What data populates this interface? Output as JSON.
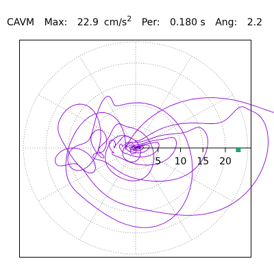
{
  "header": {
    "component": "CAVM",
    "max_label": "Max:",
    "max_value": "22.9",
    "max_unit": "cm/s",
    "max_unit_exp": "2",
    "period_label": "Per:",
    "period_value": "0.180 s",
    "angle_label": "Ang:",
    "angle_value": "2.2"
  },
  "chart_data": {
    "type": "line",
    "subtype": "polar-orbit",
    "title": "",
    "xlabel": "",
    "ylabel": "",
    "radial_ticks": [
      5,
      10,
      15,
      20
    ],
    "radial_tick_labels": [
      "5",
      "10",
      "15",
      "20"
    ],
    "rlim": [
      0,
      25
    ],
    "angular_gridlines_deg": [
      0,
      30,
      60,
      90,
      120,
      150,
      180,
      210,
      240,
      270,
      300,
      330
    ],
    "grid": true,
    "grid_style": "dotted",
    "series": [
      {
        "color": "#8a00d4",
        "components": [
          {
            "amp_x": 22.2,
            "amp_y": 4.6,
            "freq": 1,
            "phase": 0.0,
            "rot_deg": 0,
            "decay": 0.18
          },
          {
            "amp_x": 17.5,
            "amp_y": 8.0,
            "freq": 2,
            "phase": 0.8,
            "rot_deg": 14,
            "decay": 0.22
          },
          {
            "amp_x": 9.8,
            "amp_y": 12.4,
            "freq": 3,
            "phase": 1.6,
            "rot_deg": -35,
            "decay": 0.27
          },
          {
            "amp_x": 7.2,
            "amp_y": 9.6,
            "freq": 5,
            "phase": 2.3,
            "rot_deg": 52,
            "decay": 0.33
          },
          {
            "amp_x": 4.5,
            "amp_y": 5.9,
            "freq": 8,
            "phase": 0.4,
            "rot_deg": -68,
            "decay": 0.42
          },
          {
            "amp_x": 2.8,
            "amp_y": 3.4,
            "freq": 13,
            "phase": 1.9,
            "rot_deg": 33,
            "decay": 0.55
          }
        ],
        "duration": 20,
        "samples": 2200
      }
    ],
    "peak_marker": {
      "r": 22.9,
      "angle_deg": 2.2,
      "color": "#20a080"
    }
  }
}
